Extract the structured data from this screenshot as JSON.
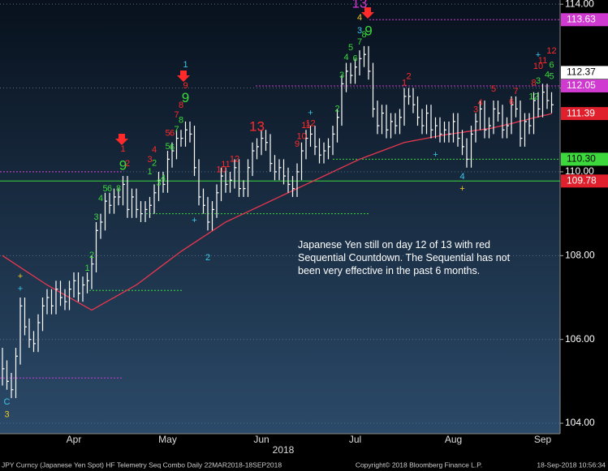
{
  "chart_data": {
    "type": "ohlc",
    "categories": [
      null,
      null,
      null,
      null,
      null,
      null,
      null,
      null,
      null,
      null,
      null,
      null,
      null,
      null,
      null,
      null,
      "Apr",
      null,
      null,
      null,
      null,
      null,
      null,
      null,
      null,
      null,
      null,
      null,
      null,
      null,
      null,
      null,
      null,
      null,
      null,
      null,
      null,
      "May",
      null,
      null,
      null,
      null,
      null,
      null,
      null,
      null,
      null,
      null,
      null,
      null,
      null,
      null,
      null,
      null,
      null,
      null,
      null,
      null,
      "Jun",
      null,
      null,
      null,
      null,
      null,
      null,
      null,
      null,
      null,
      null,
      null,
      null,
      null,
      null,
      null,
      null,
      null,
      null,
      null,
      null,
      "Jul",
      null,
      null,
      null,
      null,
      null,
      null,
      null,
      null,
      null,
      null,
      null,
      null,
      null,
      null,
      null,
      null,
      null,
      null,
      null,
      null,
      null,
      "Aug",
      null,
      null,
      null,
      null,
      null,
      null,
      null,
      null,
      null,
      null,
      null,
      null,
      null,
      null,
      null,
      null,
      null,
      null,
      null,
      "Sep",
      null,
      null
    ],
    "year": "2018",
    "bar_color": "#ffffff",
    "high": [
      105.8,
      105.5,
      105.2,
      105.8,
      107.0,
      107.0,
      106.5,
      106.2,
      106.6,
      107.0,
      107.2,
      107.2,
      107.4,
      107.4,
      107.2,
      107.4,
      107.6,
      107.6,
      107.5,
      107.6,
      108.0,
      108.8,
      109.0,
      109.5,
      109.5,
      109.6,
      109.6,
      109.9,
      109.9,
      109.6,
      109.6,
      109.3,
      109.3,
      109.4,
      109.7,
      110.0,
      110.0,
      110.5,
      110.7,
      111.0,
      111.0,
      111.2,
      111.2,
      111.1,
      110.3,
      109.6,
      109.4,
      109.3,
      109.7,
      110.1,
      110.1,
      110.0,
      110.3,
      110.3,
      109.8,
      110.3,
      110.7,
      110.8,
      111.0,
      111.0,
      110.9,
      110.4,
      110.3,
      110.3,
      110.1,
      109.9,
      110.2,
      110.7,
      111.0,
      111.1,
      111.1,
      110.8,
      110.7,
      110.8,
      111.1,
      111.5,
      112.3,
      112.6,
      112.6,
      112.7,
      112.9,
      113.0,
      113.0,
      112.6,
      111.7,
      111.6,
      111.6,
      111.4,
      111.4,
      111.5,
      112.0,
      112.0,
      112.0,
      111.8,
      111.5,
      111.6,
      111.6,
      111.3,
      111.3,
      111.2,
      111.2,
      111.4,
      111.4,
      111.0,
      110.8,
      111.1,
      111.4,
      111.7,
      111.7,
      111.3,
      111.7,
      111.7,
      111.6,
      111.3,
      111.8,
      111.8,
      111.7,
      111.4,
      111.4,
      111.9,
      111.9,
      112.1,
      112.1,
      111.9
    ],
    "low": [
      104.9,
      104.8,
      104.6,
      104.6,
      105.4,
      106.1,
      105.8,
      105.7,
      105.7,
      106.2,
      106.6,
      106.6,
      106.6,
      106.8,
      106.7,
      106.7,
      107.0,
      106.9,
      106.9,
      107.1,
      107.2,
      107.6,
      108.4,
      108.6,
      109.0,
      109.0,
      109.2,
      109.2,
      108.9,
      108.9,
      108.9,
      108.8,
      108.8,
      108.9,
      109.0,
      109.3,
      109.5,
      109.5,
      110.1,
      110.3,
      110.6,
      110.6,
      110.7,
      109.9,
      109.2,
      109.0,
      108.6,
      108.6,
      108.9,
      109.3,
      109.5,
      109.5,
      109.6,
      109.4,
      109.4,
      109.4,
      109.9,
      110.3,
      110.4,
      110.5,
      110.0,
      109.8,
      109.8,
      109.7,
      109.5,
      109.4,
      109.4,
      109.8,
      110.3,
      110.6,
      110.4,
      110.2,
      110.2,
      110.3,
      110.4,
      110.7,
      111.1,
      111.9,
      112.1,
      112.1,
      112.3,
      112.5,
      112.2,
      111.3,
      110.9,
      110.9,
      110.8,
      110.8,
      110.9,
      110.9,
      111.1,
      111.6,
      111.4,
      111.1,
      110.9,
      110.9,
      110.8,
      110.8,
      110.7,
      110.7,
      110.7,
      110.7,
      110.6,
      110.4,
      110.1,
      110.1,
      110.7,
      111.0,
      110.8,
      110.8,
      110.9,
      111.2,
      110.8,
      110.8,
      110.9,
      111.3,
      110.6,
      110.6,
      110.9,
      110.9,
      111.3,
      111.3,
      111.5,
      111.4
    ],
    "close": [
      105.3,
      105.0,
      104.8,
      105.6,
      106.8,
      106.3,
      106.0,
      105.9,
      106.4,
      106.8,
      107.0,
      106.8,
      107.2,
      107.0,
      106.9,
      107.2,
      107.4,
      107.1,
      107.3,
      107.4,
      107.8,
      108.6,
      108.8,
      109.3,
      109.2,
      109.4,
      109.4,
      109.7,
      109.1,
      109.4,
      109.1,
      109.0,
      109.1,
      109.2,
      109.5,
      109.8,
      109.7,
      110.3,
      110.5,
      110.8,
      110.8,
      111.0,
      110.9,
      110.1,
      109.4,
      109.2,
      108.8,
      109.1,
      109.5,
      109.9,
      109.7,
      109.8,
      110.1,
      109.6,
      109.6,
      110.1,
      110.5,
      110.6,
      110.8,
      110.7,
      110.2,
      110.0,
      110.1,
      109.9,
      109.7,
      109.6,
      110.0,
      110.5,
      110.8,
      110.9,
      110.6,
      110.4,
      110.5,
      110.6,
      110.9,
      111.3,
      112.1,
      112.4,
      112.3,
      112.5,
      112.7,
      112.8,
      112.4,
      111.5,
      111.1,
      111.4,
      111.0,
      111.2,
      111.1,
      111.3,
      111.8,
      111.8,
      111.6,
      111.3,
      111.1,
      111.4,
      111.0,
      111.1,
      110.9,
      111.0,
      110.9,
      111.2,
      110.8,
      110.6,
      110.3,
      110.9,
      111.2,
      111.5,
      111.0,
      111.1,
      111.5,
      111.4,
      111.0,
      111.1,
      111.6,
      111.5,
      110.8,
      111.2,
      111.1,
      111.7,
      111.5,
      111.9,
      111.7,
      111.6
    ],
    "ma": {
      "color": "#e8374f",
      "values": [
        108.0,
        107.93,
        107.86,
        107.79,
        107.72,
        107.65,
        107.58,
        107.51,
        107.44,
        107.37,
        107.3,
        107.24,
        107.18,
        107.12,
        107.06,
        107.0,
        106.94,
        106.88,
        106.82,
        106.76,
        106.7,
        106.76,
        106.82,
        106.88,
        106.94,
        107.0,
        107.06,
        107.12,
        107.18,
        107.24,
        107.3,
        107.38,
        107.46,
        107.54,
        107.62,
        107.7,
        107.78,
        107.86,
        107.94,
        108.02,
        108.1,
        108.17,
        108.24,
        108.31,
        108.38,
        108.45,
        108.52,
        108.59,
        108.66,
        108.73,
        108.8,
        108.85,
        108.9,
        108.95,
        109.0,
        109.05,
        109.1,
        109.15,
        109.2,
        109.25,
        109.3,
        109.35,
        109.4,
        109.45,
        109.5,
        109.55,
        109.6,
        109.65,
        109.7,
        109.75,
        109.8,
        109.85,
        109.9,
        109.95,
        110.0,
        110.05,
        110.1,
        110.15,
        110.2,
        110.25,
        110.3,
        110.34,
        110.38,
        110.42,
        110.46,
        110.5,
        110.54,
        110.58,
        110.62,
        110.66,
        110.7,
        110.72,
        110.74,
        110.76,
        110.78,
        110.8,
        110.82,
        110.84,
        110.86,
        110.88,
        110.9,
        110.91,
        110.93,
        110.94,
        110.96,
        110.97,
        110.99,
        111.0,
        111.02,
        111.03,
        111.05,
        111.08,
        111.1,
        111.13,
        111.15,
        111.18,
        111.21,
        111.23,
        111.26,
        111.29,
        111.31,
        111.34,
        111.36,
        111.39
      ]
    },
    "ylim": [
      103.75,
      114.1
    ],
    "yticks": [
      {
        "value": 104,
        "label": "104.00"
      },
      {
        "value": 106,
        "label": "106.00"
      },
      {
        "value": 108,
        "label": "108.00"
      },
      {
        "value": 110,
        "label": "110.00"
      },
      {
        "value": 112,
        "label": "112.00"
      },
      {
        "value": 114,
        "label": "114.00"
      }
    ],
    "grid": true,
    "levels": [
      {
        "value": 113.63,
        "color": "#d03ad0",
        "style": "dotted"
      },
      {
        "value": 112.05,
        "color": "#d03ad0",
        "style": "dotted"
      },
      {
        "value": 110.3,
        "color": "#3cd83c",
        "style": "dotted"
      },
      {
        "value": 109.78,
        "color": "#3cd83c",
        "style": "solid"
      },
      {
        "value": 110.0,
        "color": "#d03ad0",
        "style": "dotted"
      },
      {
        "value": 109.0,
        "color": "#3cd83c",
        "style": "dotted"
      },
      {
        "value": 107.17,
        "color": "#3cd83c",
        "style": "dotted"
      },
      {
        "value": 105.08,
        "color": "#d03ad0",
        "style": "dotted"
      }
    ],
    "price_labels": [
      {
        "value": 113.63,
        "color": "#d03ad0",
        "text_color": "#ffffff"
      },
      {
        "value": 112.37,
        "color": "#ffffff",
        "text_color": "#000000"
      },
      {
        "value": 112.05,
        "color": "#d03ad0",
        "text_color": "#ffffff"
      },
      {
        "value": 111.39,
        "color": "#e0202c",
        "text_color": "#ffffff"
      },
      {
        "value": 110.3,
        "label": "110.30",
        "color": "#3cd83c",
        "text_color": "#000000"
      },
      {
        "value": 109.78,
        "color": "#e0202c",
        "text_color": "#ffffff"
      }
    ],
    "annotations": [
      {
        "text": "C",
        "color": "#3ec8e8",
        "bar": 1,
        "price": 104.5
      },
      {
        "text": "3",
        "color": "#f0c828",
        "bar": 1,
        "price": 104.2
      },
      {
        "text": "+",
        "color": "#f0c828",
        "bar": 4,
        "price": 107.5
      },
      {
        "text": "+",
        "color": "#3ec8e8",
        "bar": 4,
        "price": 107.2
      },
      {
        "text": "1",
        "color": "#3cd83c",
        "bar": 19,
        "price": 107.69
      },
      {
        "text": "2",
        "color": "#3cd83c",
        "bar": 20,
        "price": 108.0
      },
      {
        "text": "3",
        "color": "#3cd83c",
        "bar": 21,
        "price": 108.91
      },
      {
        "text": "4",
        "color": "#3cd83c",
        "bar": 22,
        "price": 109.36
      },
      {
        "text": "5",
        "color": "#3cd83c",
        "bar": 23,
        "price": 109.59
      },
      {
        "text": "6",
        "color": "#3cd83c",
        "bar": 24,
        "price": 109.59
      },
      {
        "text": "8",
        "color": "#3cd83c",
        "bar": 26,
        "price": 109.59
      },
      {
        "text": "9",
        "color": "#3cd83c",
        "bar": 27,
        "price": 110.13,
        "big": true
      },
      {
        "text": "1",
        "color": "#ff2a2a",
        "bar": 27,
        "price": 110.54
      },
      {
        "text": "2",
        "color": "#ff2a2a",
        "bar": 28,
        "price": 110.19
      },
      {
        "text": "3",
        "color": "#ff2a2a",
        "bar": 33,
        "price": 110.29
      },
      {
        "text": "4",
        "color": "#ff2a2a",
        "bar": 34,
        "price": 110.52
      },
      {
        "text": "1",
        "color": "#3cd83c",
        "bar": 33,
        "price": 110.0
      },
      {
        "text": "2",
        "color": "#3cd83c",
        "bar": 34,
        "price": 110.2
      },
      {
        "text": "3",
        "color": "#3cd83c",
        "bar": 35,
        "price": 109.73
      },
      {
        "text": "4",
        "color": "#3cd83c",
        "bar": 36,
        "price": 109.84
      },
      {
        "text": "5",
        "color": "#ff2a2a",
        "bar": 37,
        "price": 110.92
      },
      {
        "text": "6",
        "color": "#ff2a2a",
        "bar": 38,
        "price": 110.92
      },
      {
        "text": "5",
        "color": "#3cd83c",
        "bar": 37,
        "price": 110.6
      },
      {
        "text": "6",
        "color": "#3cd83c",
        "bar": 38,
        "price": 110.58
      },
      {
        "text": "7",
        "color": "#3cd83c",
        "bar": 39,
        "price": 111.0
      },
      {
        "text": "7",
        "color": "#ff2a2a",
        "bar": 39,
        "price": 111.35
      },
      {
        "text": "8",
        "color": "#3cd83c",
        "bar": 40,
        "price": 111.23
      },
      {
        "text": "8",
        "color": "#ff2a2a",
        "bar": 40,
        "price": 111.58
      },
      {
        "text": "9",
        "color": "#3cd83c",
        "bar": 41,
        "price": 111.75,
        "big": true
      },
      {
        "text": "1",
        "color": "#3ec8e8",
        "bar": 41,
        "price": 112.55
      },
      {
        "text": "9",
        "color": "#ff2a2a",
        "bar": 41,
        "price": 112.05
      },
      {
        "text": "+",
        "color": "#3ec8e8",
        "bar": 43,
        "price": 108.84
      },
      {
        "text": "2",
        "color": "#3ec8e8",
        "bar": 46,
        "price": 107.95
      },
      {
        "text": "10",
        "color": "#ff2a2a",
        "bar": 49,
        "price": 110.05
      },
      {
        "text": "11",
        "color": "#ff2a2a",
        "bar": 50,
        "price": 110.17
      },
      {
        "text": "12",
        "color": "#ff2a2a",
        "bar": 52,
        "price": 110.3
      },
      {
        "text": "13",
        "color": "#ff2a2a",
        "bar": 57,
        "price": 111.06,
        "big": true
      },
      {
        "text": "9",
        "color": "#ff2a2a",
        "bar": 66,
        "price": 110.65
      },
      {
        "text": "10",
        "color": "#ff2a2a",
        "bar": 67,
        "price": 110.84
      },
      {
        "text": "11",
        "color": "#ff2a2a",
        "bar": 68,
        "price": 111.1
      },
      {
        "text": "12",
        "color": "#ff2a2a",
        "bar": 69,
        "price": 111.15
      },
      {
        "text": "+",
        "color": "#3ec8e8",
        "bar": 69,
        "price": 111.4
      },
      {
        "text": "2",
        "color": "#3cd83c",
        "bar": 75,
        "price": 111.5
      },
      {
        "text": "3",
        "color": "#3cd83c",
        "bar": 76,
        "price": 112.3
      },
      {
        "text": "4",
        "color": "#3cd83c",
        "bar": 77,
        "price": 112.72
      },
      {
        "text": "5",
        "color": "#3cd83c",
        "bar": 78,
        "price": 112.96
      },
      {
        "text": "6",
        "color": "#3cd83c",
        "bar": 79,
        "price": 112.7
      },
      {
        "text": "7",
        "color": "#3cd83c",
        "bar": 80,
        "price": 113.09
      },
      {
        "text": "8",
        "color": "#3cd83c",
        "bar": 81,
        "price": 113.27
      },
      {
        "text": "9",
        "color": "#3cd83c",
        "bar": 82,
        "price": 113.35,
        "big": true
      },
      {
        "text": "3",
        "color": "#3ec8e8",
        "bar": 80,
        "price": 113.36
      },
      {
        "text": "4",
        "color": "#f0c828",
        "bar": 80,
        "price": 113.67
      },
      {
        "text": "13",
        "color": "#d03ad0",
        "bar": 80,
        "price": 114.0,
        "big": true
      },
      {
        "text": "1",
        "color": "#ff2a2a",
        "bar": 90,
        "price": 112.12
      },
      {
        "text": "2",
        "color": "#ff2a2a",
        "bar": 91,
        "price": 112.27
      },
      {
        "text": "+",
        "color": "#3ec8e8",
        "bar": 97,
        "price": 110.4
      },
      {
        "text": "4",
        "color": "#3ec8e8",
        "bar": 103,
        "price": 109.88
      },
      {
        "text": "+",
        "color": "#f0c828",
        "bar": 103,
        "price": 109.59
      },
      {
        "text": "3",
        "color": "#ff2a2a",
        "bar": 106,
        "price": 111.48
      },
      {
        "text": "4",
        "color": "#ff2a2a",
        "bar": 107,
        "price": 111.64
      },
      {
        "text": "5",
        "color": "#ff2a2a",
        "bar": 110,
        "price": 111.97
      },
      {
        "text": "6",
        "color": "#ff2a2a",
        "bar": 114,
        "price": 111.66
      },
      {
        "text": "7",
        "color": "#ff2a2a",
        "bar": 115,
        "price": 111.91
      },
      {
        "text": "12",
        "color": "#3cd83c",
        "bar": 119,
        "price": 111.79
      },
      {
        "text": "8",
        "color": "#ff2a2a",
        "bar": 119,
        "price": 112.12
      },
      {
        "text": "3",
        "color": "#3cd83c",
        "bar": 120,
        "price": 112.16
      },
      {
        "text": "4",
        "color": "#3cd83c",
        "bar": 122,
        "price": 112.31
      },
      {
        "text": "5",
        "color": "#3cd83c",
        "bar": 123,
        "price": 112.27
      },
      {
        "text": "10",
        "color": "#ff2a2a",
        "bar": 120,
        "price": 112.51
      },
      {
        "text": "11",
        "color": "#ff2a2a",
        "bar": 121,
        "price": 112.65
      },
      {
        "text": "+",
        "color": "#3ec8e8",
        "bar": 120,
        "price": 112.78
      },
      {
        "text": "12",
        "color": "#ff2a2a",
        "bar": 123,
        "price": 112.88
      },
      {
        "text": "6",
        "color": "#3cd83c",
        "bar": 123,
        "price": 112.54
      }
    ],
    "note": "Japanese Yen still on day 12 of 13 with red Sequential Countdown.  The Sequential has not been very effective in the past 6 months.",
    "footer": {
      "left": "JPY Curncy (Japanese Yen Spot) HF Telemetry Seq Combo  Daily 22MAR2018-18SEP2018",
      "center": "Copyright© 2018 Bloomberg Finance L.P.",
      "right": "18-Sep-2018 10:56:34"
    }
  }
}
